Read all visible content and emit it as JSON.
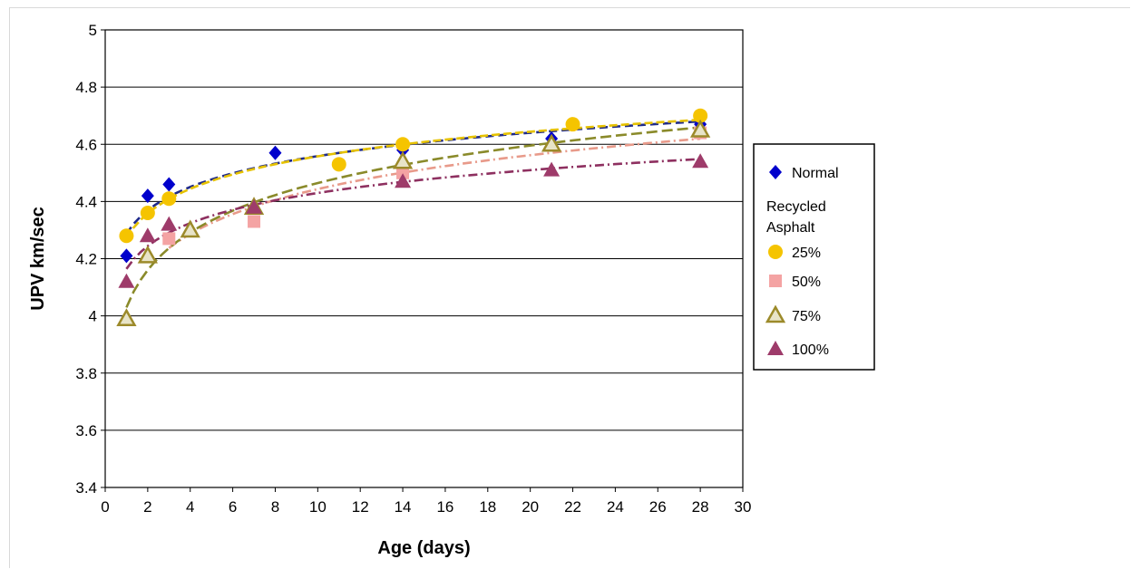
{
  "chart_data": {
    "type": "scatter",
    "title": "",
    "xlabel": "Age (days)",
    "ylabel": "UPV km/sec",
    "xlim": [
      0,
      30
    ],
    "ylim": [
      3.4,
      5
    ],
    "x_ticks": [
      "0",
      "2",
      "4",
      "6",
      "8",
      "10",
      "12",
      "14",
      "16",
      "18",
      "20",
      "22",
      "24",
      "26",
      "28",
      "30"
    ],
    "y_ticks": [
      "3.4",
      "3.6",
      "3.8",
      "4",
      "4.2",
      "4.4",
      "4.6",
      "4.8",
      "5"
    ],
    "grid": "horizontal",
    "legend_position": "right",
    "legend_heading": "Recycled\nAsphalt",
    "legend_heading_lines": [
      "Recycled",
      "Asphalt"
    ],
    "series": [
      {
        "name": "Normal",
        "marker": "diamond",
        "color": "#0000cc",
        "line_color": "#1f2a8a",
        "dash": "9,5",
        "x": [
          1,
          2,
          3,
          8,
          14,
          21,
          28
        ],
        "y": [
          4.21,
          4.42,
          4.46,
          4.57,
          4.58,
          4.62,
          4.67
        ]
      },
      {
        "name": "25%",
        "marker": "circle",
        "color": "#f5c400",
        "line_color": "#e6c200",
        "dash": "9,4",
        "x": [
          1,
          2,
          3,
          11,
          14,
          22,
          28
        ],
        "y": [
          4.28,
          4.36,
          4.41,
          4.53,
          4.6,
          4.67,
          4.7
        ]
      },
      {
        "name": "50%",
        "marker": "square",
        "color": "#f4a3a3",
        "line_color": "#e89a8a",
        "dash": "10,4,2,4",
        "x": [
          3,
          7,
          14,
          28
        ],
        "y": [
          4.27,
          4.33,
          4.5,
          4.64
        ]
      },
      {
        "name": "75%",
        "marker": "triangle-open",
        "color": "#9c8a2a",
        "line_color": "#8a8a2a",
        "dash": "12,5",
        "x": [
          1,
          2,
          4,
          7,
          14,
          21,
          28
        ],
        "y": [
          3.99,
          4.21,
          4.3,
          4.38,
          4.54,
          4.6,
          4.65
        ]
      },
      {
        "name": "100%",
        "marker": "triangle",
        "color": "#9e3b6a",
        "line_color": "#8e3060",
        "dash": "10,4,2,4",
        "x": [
          1,
          2,
          3,
          7,
          14,
          21,
          28
        ],
        "y": [
          4.12,
          4.28,
          4.32,
          4.38,
          4.47,
          4.51,
          4.54
        ]
      }
    ]
  }
}
